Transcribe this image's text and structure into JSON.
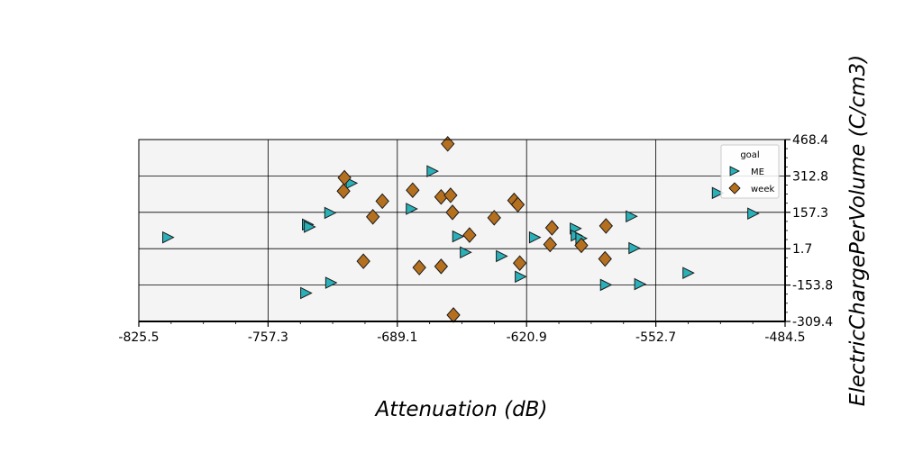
{
  "chart_data": {
    "type": "scatter",
    "xlabel": "Attenuation (dB)",
    "ylabel": "ElectricChargePerVolume (C/cm3)",
    "xlim": [
      -825.5,
      -484.5
    ],
    "ylim": [
      -309.4,
      468.4
    ],
    "x_ticks": [
      "-825.5",
      "-757.3",
      "-689.1",
      "-620.9",
      "-552.7",
      "-484.5"
    ],
    "y_ticks": [
      "468.4",
      "312.8",
      "157.3",
      "1.7",
      "-153.8",
      "-309.4"
    ],
    "grid": true,
    "legend": {
      "title": "goal",
      "position": "upper right"
    },
    "series": [
      {
        "name": "ME",
        "marker": "triangle-right",
        "color": "#2ab0b8",
        "points": [
          [
            -810.5,
            50.0
          ],
          [
            -736.8,
            105.0
          ],
          [
            -735.8,
            95.0
          ],
          [
            -725.0,
            155.0
          ],
          [
            -737.7,
            -188.0
          ],
          [
            -724.5,
            -144.0
          ],
          [
            -713.7,
            282.0
          ],
          [
            -682.0,
            172.0
          ],
          [
            -671.0,
            333.0
          ],
          [
            -657.5,
            54.0
          ],
          [
            -653.5,
            -14.0
          ],
          [
            -634.5,
            -30.0
          ],
          [
            -624.5,
            -118.0
          ],
          [
            -617.0,
            50.0
          ],
          [
            -595.5,
            88.0
          ],
          [
            -595.0,
            58.0
          ],
          [
            -592.5,
            46.0
          ],
          [
            -579.5,
            -153.0
          ],
          [
            -566.0,
            140.0
          ],
          [
            -564.5,
            4.0
          ],
          [
            -561.5,
            -150.0
          ],
          [
            -536.0,
            -102.0
          ],
          [
            -520.5,
            240.0
          ],
          [
            -501.8,
            152.0
          ]
        ]
      },
      {
        "name": "week",
        "marker": "diamond",
        "color": "#b5701f",
        "points": [
          [
            -662.5,
            450.0
          ],
          [
            -717.0,
            305.0
          ],
          [
            -717.5,
            248.0
          ],
          [
            -702.0,
            138.0
          ],
          [
            -697.0,
            205.0
          ],
          [
            -707.0,
            -52.0
          ],
          [
            -681.0,
            252.0
          ],
          [
            -677.5,
            -79.0
          ],
          [
            -666.0,
            223.0
          ],
          [
            -661.0,
            230.0
          ],
          [
            -660.0,
            157.0
          ],
          [
            -651.0,
            60.0
          ],
          [
            -666.0,
            -74.0
          ],
          [
            -659.5,
            -282.0
          ],
          [
            -638.0,
            134.0
          ],
          [
            -627.5,
            208.0
          ],
          [
            -625.5,
            190.0
          ],
          [
            -624.5,
            -60.0
          ],
          [
            -607.5,
            91.0
          ],
          [
            -608.5,
            20.0
          ],
          [
            -592.0,
            16.0
          ],
          [
            -579.0,
            99.0
          ],
          [
            -579.5,
            -42.0
          ]
        ]
      }
    ]
  }
}
